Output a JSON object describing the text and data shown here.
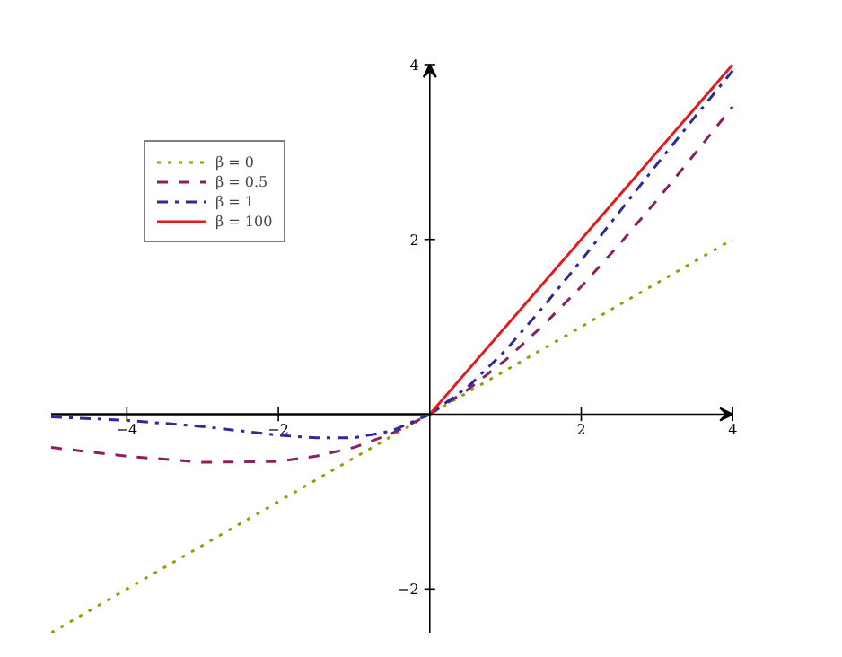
{
  "chart_data": {
    "type": "line",
    "xlim": [
      -5,
      4
    ],
    "ylim": [
      -2.5,
      4
    ],
    "xticks": [
      {
        "value": -4,
        "label": "−4"
      },
      {
        "value": -2,
        "label": "−2"
      },
      2,
      4
    ],
    "yticks": [
      {
        "value": -2,
        "label": "−2"
      },
      2,
      4
    ],
    "grid": false,
    "legend": "top left",
    "marker": "none",
    "series": [
      {
        "name": "β = 0",
        "color": "#999900",
        "line_style": "dotted",
        "x": [
          -5,
          4
        ],
        "values": [
          -2.5,
          2
        ]
      },
      {
        "name": "β = 0.5",
        "color": "#8b2060",
        "line_style": "dashed",
        "x": [
          -5,
          -4,
          -3,
          -2,
          -1.5,
          -1,
          -0.5,
          0,
          0.5,
          1,
          1.5,
          2,
          2.5,
          3,
          3.5,
          4
        ],
        "values": [
          -0.38,
          -0.48,
          -0.55,
          -0.54,
          -0.48,
          -0.38,
          -0.22,
          0,
          0.28,
          0.62,
          1.02,
          1.46,
          1.94,
          2.45,
          2.98,
          3.52
        ]
      },
      {
        "name": "β = 1",
        "color": "#2b2b9b",
        "line_style": "dashdot",
        "x": [
          -5,
          -4,
          -3,
          -2,
          -1.5,
          -1,
          -0.5,
          0,
          0.5,
          1,
          1.5,
          2,
          2.5,
          3,
          3.5,
          4
        ],
        "values": [
          -0.03,
          -0.07,
          -0.14,
          -0.24,
          -0.27,
          -0.27,
          -0.19,
          0,
          0.31,
          0.73,
          1.23,
          1.76,
          2.31,
          2.86,
          3.4,
          3.93
        ]
      },
      {
        "name": "β = 100",
        "color": "#e41a1c",
        "line_style": "solid",
        "x": [
          -5,
          0,
          4
        ],
        "values": [
          0,
          0,
          4
        ]
      }
    ]
  }
}
